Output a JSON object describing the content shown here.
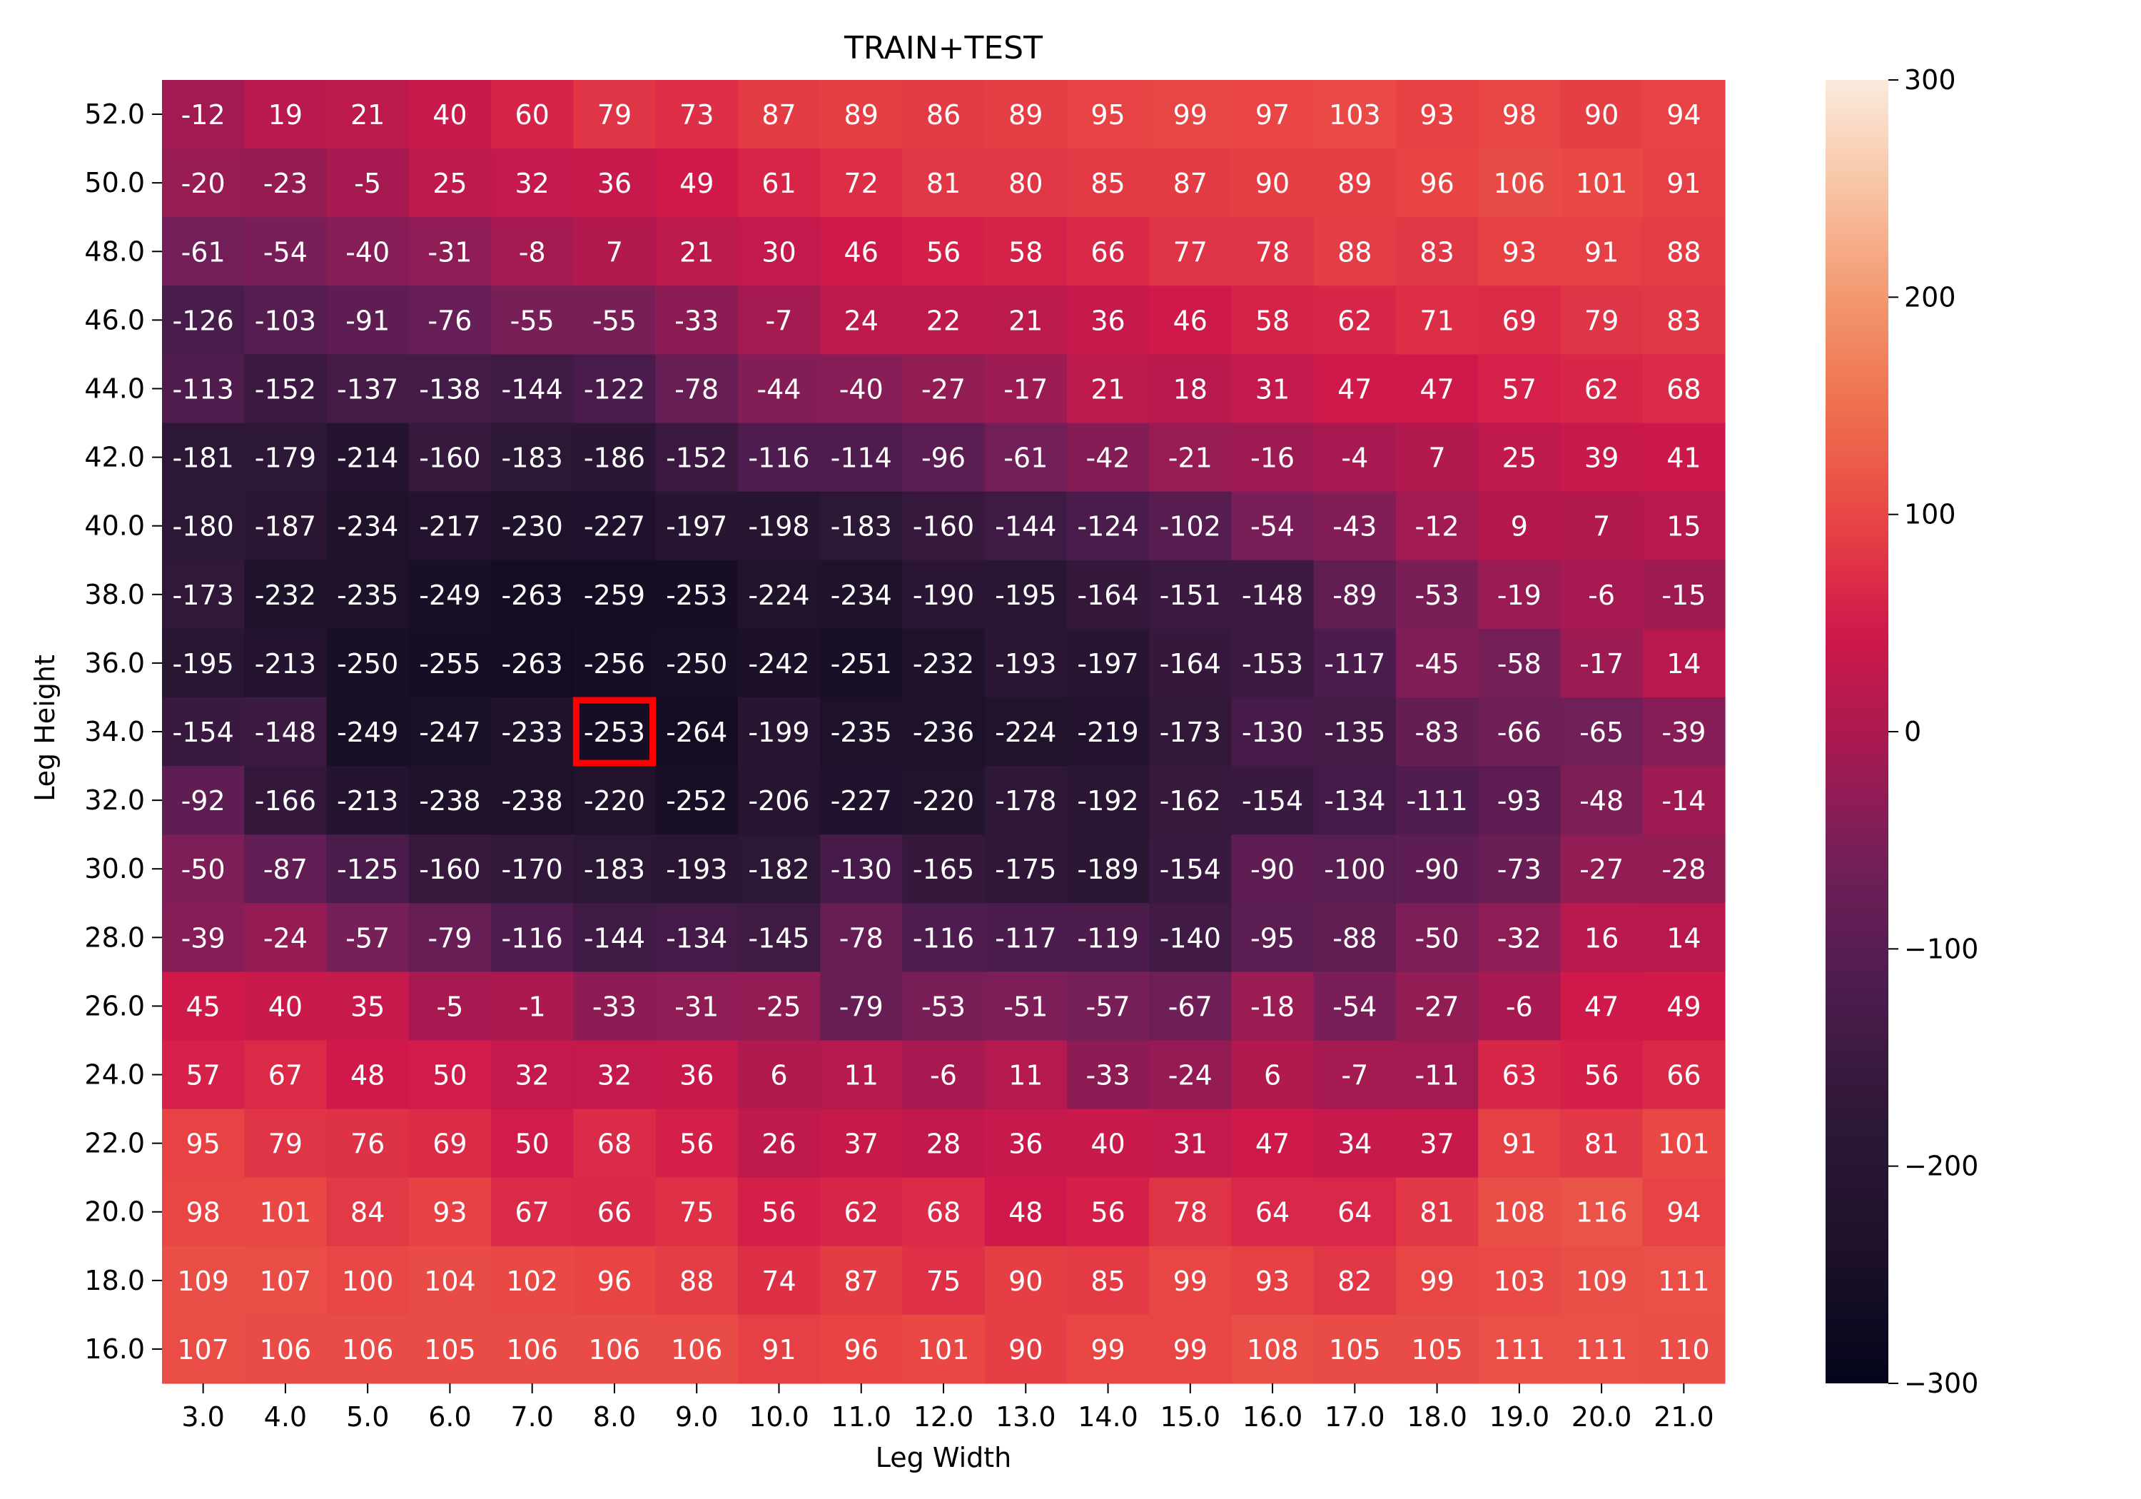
{
  "chart_data": {
    "type": "heatmap",
    "title": "TRAIN+TEST",
    "xlabel": "Leg Width",
    "ylabel": "Leg Height",
    "x": [
      "3.0",
      "4.0",
      "5.0",
      "6.0",
      "7.0",
      "8.0",
      "9.0",
      "10.0",
      "11.0",
      "12.0",
      "13.0",
      "14.0",
      "15.0",
      "16.0",
      "17.0",
      "18.0",
      "19.0",
      "20.0",
      "21.0"
    ],
    "y": [
      "52.0",
      "50.0",
      "48.0",
      "46.0",
      "44.0",
      "42.0",
      "40.0",
      "38.0",
      "36.0",
      "34.0",
      "32.0",
      "30.0",
      "28.0",
      "26.0",
      "24.0",
      "22.0",
      "20.0",
      "18.0",
      "16.0"
    ],
    "values": [
      [
        -12,
        19,
        21,
        40,
        60,
        79,
        73,
        87,
        89,
        86,
        89,
        95,
        99,
        97,
        103,
        93,
        98,
        90,
        94
      ],
      [
        -20,
        -23,
        -5,
        25,
        32,
        36,
        49,
        61,
        72,
        81,
        80,
        85,
        87,
        90,
        89,
        96,
        106,
        101,
        91
      ],
      [
        -61,
        -54,
        -40,
        -31,
        -8,
        7,
        21,
        30,
        46,
        56,
        58,
        66,
        77,
        78,
        88,
        83,
        93,
        91,
        88
      ],
      [
        -126,
        -103,
        -91,
        -76,
        -55,
        -55,
        -33,
        -7,
        24,
        22,
        21,
        36,
        46,
        58,
        62,
        71,
        69,
        79,
        83
      ],
      [
        -113,
        -152,
        -137,
        -138,
        -144,
        -122,
        -78,
        -44,
        -40,
        -27,
        -17,
        21,
        18,
        31,
        47,
        47,
        57,
        62,
        68
      ],
      [
        -181,
        -179,
        -214,
        -160,
        -183,
        -186,
        -152,
        -116,
        -114,
        -96,
        -61,
        -42,
        -21,
        -16,
        -4,
        7,
        25,
        39,
        41
      ],
      [
        -180,
        -187,
        -234,
        -217,
        -230,
        -227,
        -197,
        -198,
        -183,
        -160,
        -144,
        -124,
        -102,
        -54,
        -43,
        -12,
        9,
        7,
        15
      ],
      [
        -173,
        -232,
        -235,
        -249,
        -263,
        -259,
        -253,
        -224,
        -234,
        -190,
        -195,
        -164,
        -151,
        -148,
        -89,
        -53,
        -19,
        -6,
        -15
      ],
      [
        -195,
        -213,
        -250,
        -255,
        -263,
        -256,
        -250,
        -242,
        -251,
        -232,
        -193,
        -197,
        -164,
        -153,
        -117,
        -45,
        -58,
        -17,
        14
      ],
      [
        -154,
        -148,
        -249,
        -247,
        -233,
        -253,
        -264,
        -199,
        -235,
        -236,
        -224,
        -219,
        -173,
        -130,
        -135,
        -83,
        -66,
        -65,
        -39
      ],
      [
        -92,
        -166,
        -213,
        -238,
        -238,
        -220,
        -252,
        -206,
        -227,
        -220,
        -178,
        -192,
        -162,
        -154,
        -134,
        -111,
        -93,
        -48,
        -14
      ],
      [
        -50,
        -87,
        -125,
        -160,
        -170,
        -183,
        -193,
        -182,
        -130,
        -165,
        -175,
        -189,
        -154,
        -90,
        -100,
        -90,
        -73,
        -27,
        -28
      ],
      [
        -39,
        -24,
        -57,
        -79,
        -116,
        -144,
        -134,
        -145,
        -78,
        -116,
        -117,
        -119,
        -140,
        -95,
        -88,
        -50,
        -32,
        16,
        14
      ],
      [
        45,
        40,
        35,
        -5,
        -1,
        -33,
        -31,
        -25,
        -79,
        -53,
        -51,
        -57,
        -67,
        -18,
        -54,
        -27,
        -6,
        47,
        49
      ],
      [
        57,
        67,
        48,
        50,
        32,
        32,
        36,
        6,
        11,
        -6,
        11,
        -33,
        -24,
        6,
        -7,
        -11,
        63,
        56,
        66
      ],
      [
        95,
        79,
        76,
        69,
        50,
        68,
        56,
        26,
        37,
        28,
        36,
        40,
        31,
        47,
        34,
        37,
        91,
        81,
        101
      ],
      [
        98,
        101,
        84,
        93,
        67,
        66,
        75,
        56,
        62,
        68,
        48,
        56,
        78,
        64,
        64,
        81,
        108,
        116,
        94
      ],
      [
        109,
        107,
        100,
        104,
        102,
        96,
        88,
        74,
        87,
        75,
        90,
        85,
        99,
        93,
        82,
        99,
        103,
        109,
        111
      ],
      [
        107,
        106,
        106,
        105,
        106,
        106,
        106,
        91,
        96,
        101,
        90,
        99,
        99,
        108,
        105,
        105,
        111,
        111,
        110
      ]
    ],
    "vmin": -300,
    "vmax": 300,
    "colorbar_ticks": [
      "300",
      "200",
      "100",
      "0",
      "−100",
      "−200",
      "−300"
    ],
    "colormap": "rocket",
    "highlight": {
      "x": "8.0",
      "y": "34.0",
      "color": "#ff0000"
    },
    "grid": false,
    "legend": "colorbar-right"
  }
}
